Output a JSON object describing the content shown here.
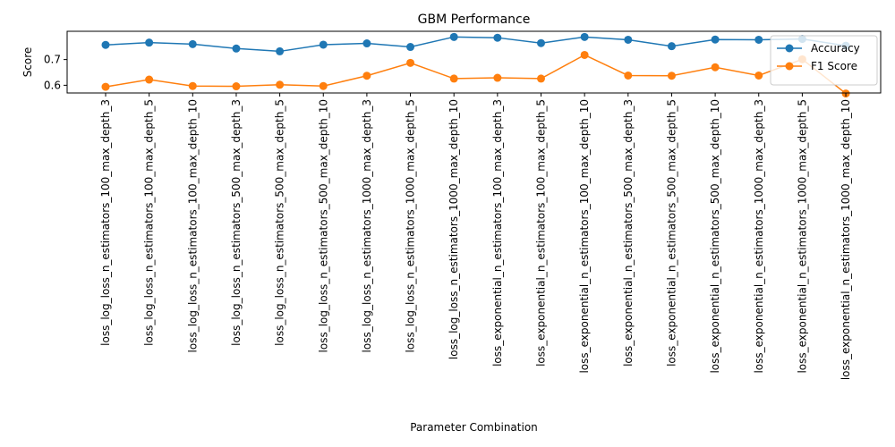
{
  "chart_data": {
    "type": "line",
    "title": "GBM Performance",
    "xlabel": "Parameter Combination",
    "ylabel": "Score",
    "ylim": [
      0.57,
      0.81
    ],
    "yticks": [
      0.6,
      0.7
    ],
    "grid": false,
    "legend_position": "top-right",
    "categories": [
      "loss_log_loss_n_estimators_100_max_depth_3",
      "loss_log_loss_n_estimators_100_max_depth_5",
      "loss_log_loss_n_estimators_100_max_depth_10",
      "loss_log_loss_n_estimators_500_max_depth_3",
      "loss_log_loss_n_estimators_500_max_depth_5",
      "loss_log_loss_n_estimators_500_max_depth_10",
      "loss_log_loss_n_estimators_1000_max_depth_3",
      "loss_log_loss_n_estimators_1000_max_depth_5",
      "loss_log_loss_n_estimators_1000_max_depth_10",
      "loss_exponential_n_estimators_100_max_depth_3",
      "loss_exponential_n_estimators_100_max_depth_5",
      "loss_exponential_n_estimators_100_max_depth_10",
      "loss_exponential_n_estimators_500_max_depth_3",
      "loss_exponential_n_estimators_500_max_depth_5",
      "loss_exponential_n_estimators_500_max_depth_10",
      "loss_exponential_n_estimators_1000_max_depth_3",
      "loss_exponential_n_estimators_1000_max_depth_5",
      "loss_exponential_n_estimators_1000_max_depth_10"
    ],
    "series": [
      {
        "name": "Accuracy",
        "color": "#1f77b4",
        "values": [
          0.757,
          0.766,
          0.76,
          0.743,
          0.732,
          0.758,
          0.763,
          0.749,
          0.788,
          0.785,
          0.764,
          0.788,
          0.777,
          0.752,
          0.778,
          0.777,
          0.78,
          0.754
        ]
      },
      {
        "name": "F1 Score",
        "color": "#ff7f0e",
        "values": [
          0.594,
          0.622,
          0.597,
          0.596,
          0.602,
          0.597,
          0.637,
          0.687,
          0.626,
          0.629,
          0.626,
          0.718,
          0.638,
          0.637,
          0.67,
          0.638,
          0.701,
          0.568
        ]
      }
    ]
  }
}
